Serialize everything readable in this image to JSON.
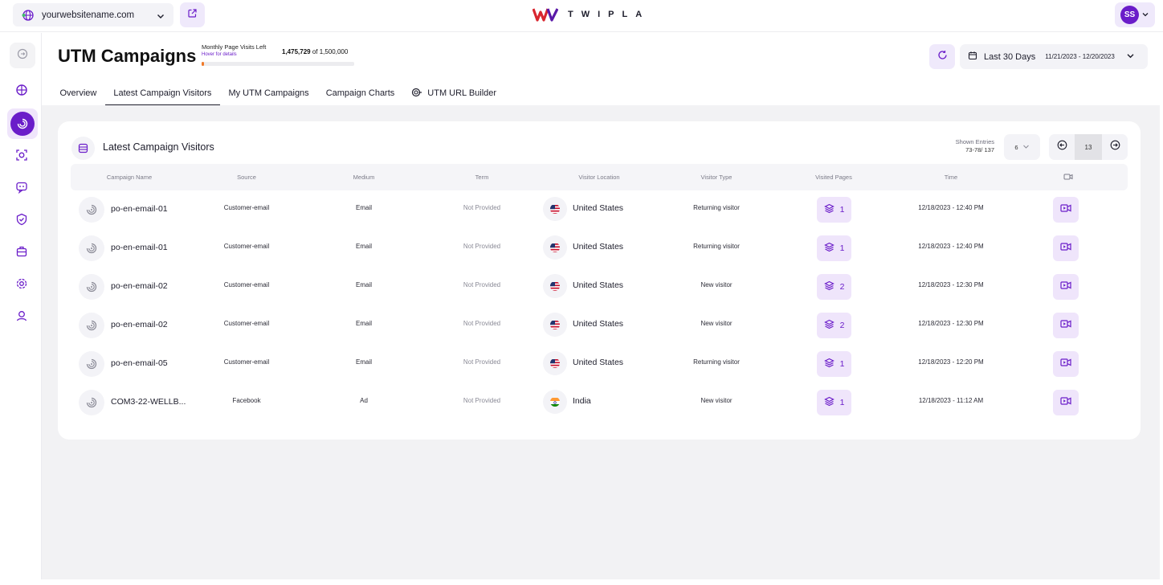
{
  "topbar": {
    "site_name": "yourwebsitename.com",
    "logo_text": "TWIPLA",
    "user_initials": "SS"
  },
  "header": {
    "title": "UTM Campaigns",
    "quota_label": "Monthly Page Visits Left",
    "quota_hover": "Hover for details",
    "quota_used": "1,475,729",
    "quota_total": "of 1,500,000",
    "quota_used_fraction": 0.016,
    "date_range_label": "Last 30 Days",
    "date_range_dates": "11/21/2023 - 12/20/2023"
  },
  "tabs": [
    {
      "label": "Overview",
      "active": false
    },
    {
      "label": "Latest Campaign Visitors",
      "active": true
    },
    {
      "label": "My UTM Campaigns",
      "active": false
    },
    {
      "label": "Campaign Charts",
      "active": false
    },
    {
      "label": "UTM URL Builder",
      "active": false
    }
  ],
  "card": {
    "title": "Latest Campaign Visitors",
    "shown_entries_label": "Shown Entries",
    "shown_entries_value": "73-78/ 137",
    "per_page": "6",
    "current_page": "13"
  },
  "table": {
    "columns": [
      "Campaign Name",
      "Source",
      "Medium",
      "Term",
      "Visitor Location",
      "Visitor Type",
      "Visited Pages",
      "Time"
    ],
    "rows": [
      {
        "campaign": "po-en-email-01",
        "source": "Customer-email",
        "medium": "Email",
        "term": "Not Provided",
        "country": "United States",
        "flag": "us",
        "visitor_type": "Returning visitor",
        "pages": "1",
        "time": "12/18/2023 - 12:40 PM"
      },
      {
        "campaign": "po-en-email-01",
        "source": "Customer-email",
        "medium": "Email",
        "term": "Not Provided",
        "country": "United States",
        "flag": "us",
        "visitor_type": "Returning visitor",
        "pages": "1",
        "time": "12/18/2023 - 12:40 PM"
      },
      {
        "campaign": "po-en-email-02",
        "source": "Customer-email",
        "medium": "Email",
        "term": "Not Provided",
        "country": "United States",
        "flag": "us",
        "visitor_type": "New visitor",
        "pages": "2",
        "time": "12/18/2023 - 12:30 PM"
      },
      {
        "campaign": "po-en-email-02",
        "source": "Customer-email",
        "medium": "Email",
        "term": "Not Provided",
        "country": "United States",
        "flag": "us",
        "visitor_type": "New visitor",
        "pages": "2",
        "time": "12/18/2023 - 12:30 PM"
      },
      {
        "campaign": "po-en-email-05",
        "source": "Customer-email",
        "medium": "Email",
        "term": "Not Provided",
        "country": "United States",
        "flag": "us",
        "visitor_type": "Returning visitor",
        "pages": "1",
        "time": "12/18/2023 - 12:20 PM"
      },
      {
        "campaign": "COM3-22-WELLB...",
        "source": "Facebook",
        "medium": "Ad",
        "term": "Not Provided",
        "country": "India",
        "flag": "in",
        "visitor_type": "New visitor",
        "pages": "1",
        "time": "12/18/2023 - 11:12 AM"
      }
    ]
  },
  "colors": {
    "accent": "#6a1cc9",
    "accent_light": "#efe5fb",
    "progress": "#f07a2a",
    "logo_red": "#d8262f"
  }
}
